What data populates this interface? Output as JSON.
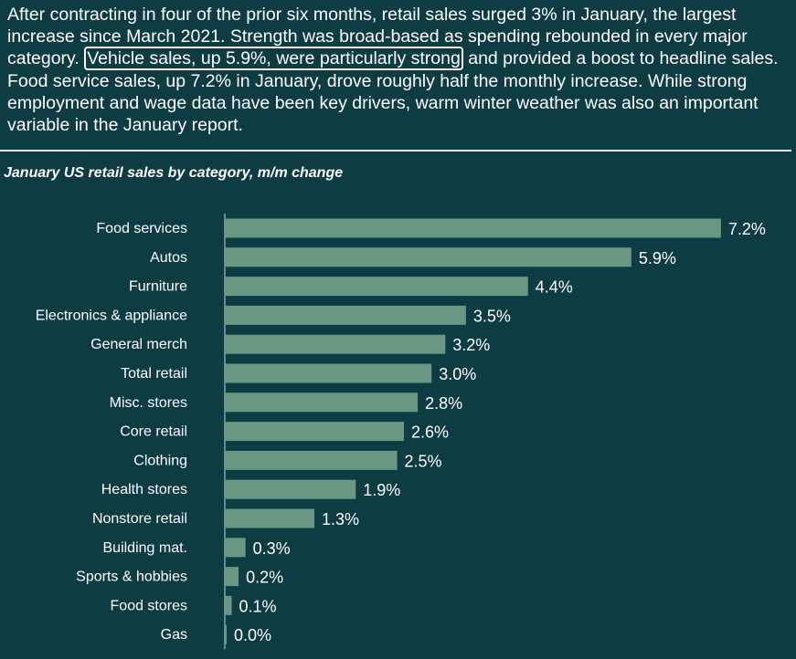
{
  "intro": {
    "before": "After contracting in four of the prior six months, retail sales surged 3% in January, the largest increase since March 2021. Strength was broad-based as spending rebounded in every major category. ",
    "highlight": "Vehicle sales, up 5.9%, were particularly strong",
    "after": " and provided a boost to headline sales. Food service sales, up 7.2% in January, drove roughly half the monthly increase. While strong employment and wage data have been key drivers, warm winter weather was also an important variable in the January report."
  },
  "colors": {
    "background": "#0e3c43",
    "bar": "#6b9683",
    "text": "#ffffff"
  },
  "chart_data": {
    "type": "bar",
    "orientation": "horizontal",
    "title": "January US retail sales by category, m/m change",
    "categories": [
      "Food services",
      "Autos",
      "Furniture",
      "Electronics & appliance",
      "General merch",
      "Total retail",
      "Misc. stores",
      "Core retail",
      "Clothing",
      "Health stores",
      "Nonstore retail",
      "Building mat.",
      "Sports & hobbies",
      "Food stores",
      "Gas"
    ],
    "values": [
      7.2,
      5.9,
      4.4,
      3.5,
      3.2,
      3.0,
      2.8,
      2.6,
      2.5,
      1.9,
      1.3,
      0.3,
      0.2,
      0.1,
      0.0
    ],
    "value_labels": [
      "7.2%",
      "5.9%",
      "4.4%",
      "3.5%",
      "3.2%",
      "3.0%",
      "2.8%",
      "2.6%",
      "2.5%",
      "1.9%",
      "1.3%",
      "0.3%",
      "0.2%",
      "0.1%",
      "0.0%"
    ],
    "xlim": [
      0,
      7.5
    ],
    "grid": false
  }
}
